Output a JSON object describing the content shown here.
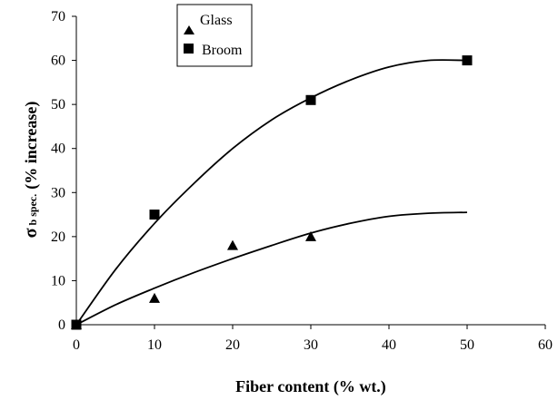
{
  "chart_data": {
    "type": "scatter",
    "xlabel": "Fiber content (% wt.)",
    "ylabel_symbol": "σ",
    "ylabel_subscript": "b spec.",
    "ylabel_text": "(% increase)",
    "xlim": [
      0,
      60
    ],
    "ylim": [
      0,
      70
    ],
    "x_ticks": [
      0,
      10,
      20,
      30,
      40,
      50,
      60
    ],
    "y_ticks": [
      0,
      10,
      20,
      30,
      40,
      50,
      60,
      70
    ],
    "grid": false,
    "legend_position": "top-center",
    "series": [
      {
        "name": "Glass",
        "marker": "triangle",
        "color": "#000000",
        "points": [
          [
            0,
            0
          ],
          [
            10,
            6
          ],
          [
            20,
            18
          ],
          [
            30,
            20
          ]
        ],
        "trend": [
          [
            0,
            0
          ],
          [
            5,
            4.5
          ],
          [
            10,
            8.3
          ],
          [
            15,
            11.8
          ],
          [
            20,
            15
          ],
          [
            25,
            18
          ],
          [
            30,
            20.8
          ],
          [
            35,
            23
          ],
          [
            40,
            24.6
          ],
          [
            45,
            25.3
          ],
          [
            50,
            25.5
          ]
        ]
      },
      {
        "name": "Broom",
        "marker": "square",
        "color": "#000000",
        "points": [
          [
            0,
            0
          ],
          [
            10,
            25
          ],
          [
            30,
            51
          ],
          [
            50,
            60
          ]
        ],
        "trend": [
          [
            0,
            0
          ],
          [
            5,
            12.5
          ],
          [
            10,
            23
          ],
          [
            15,
            32
          ],
          [
            20,
            40
          ],
          [
            25,
            46.5
          ],
          [
            30,
            51.5
          ],
          [
            35,
            55.5
          ],
          [
            40,
            58.5
          ],
          [
            45,
            60
          ],
          [
            50,
            60
          ]
        ]
      }
    ]
  }
}
